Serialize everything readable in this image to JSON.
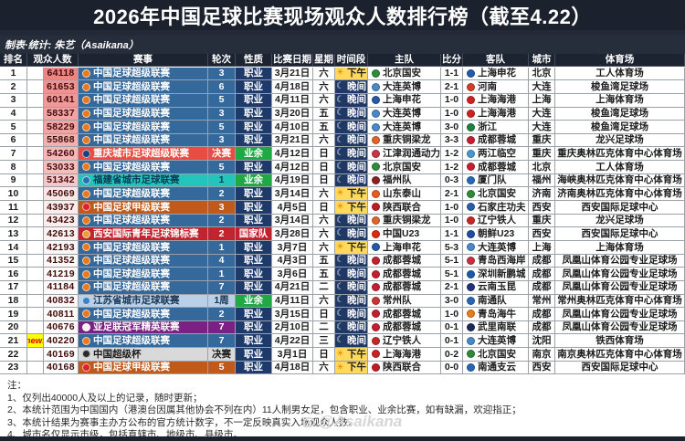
{
  "title": "2026年中国足球比赛现场观众人数排行榜（截至4.22）",
  "credit": "制表·统计: 朱艺（Asaikana）",
  "watermark": "@Asaikana",
  "table": {
    "columns": [
      {
        "key": "rank",
        "label": "排名"
      },
      {
        "key": "attendance",
        "label": "观众人数",
        "span": 2
      },
      {
        "key": "league",
        "label": "赛事"
      },
      {
        "key": "round",
        "label": "轮次"
      },
      {
        "key": "nature",
        "label": "性质"
      },
      {
        "key": "date",
        "label": "比赛日期"
      },
      {
        "key": "weekday",
        "label": "星期"
      },
      {
        "key": "time",
        "label": "时间段"
      },
      {
        "key": "home",
        "label": "主队"
      },
      {
        "key": "score",
        "label": "比分"
      },
      {
        "key": "away",
        "label": "客队"
      },
      {
        "key": "city",
        "label": "城市"
      },
      {
        "key": "stadium",
        "label": "体育场"
      }
    ],
    "attendance_heat": {
      "min": 40000,
      "max": 64200,
      "high_color": "#ef8585",
      "low_color": "#ffffff"
    },
    "rows": [
      {
        "rank": "1",
        "flag": "",
        "attendance": "64118",
        "league": "中国足球超级联赛",
        "round": "3",
        "nature": "职业",
        "date": "3月21日",
        "week": "六",
        "time": "下午",
        "home": {
          "name": "北京国安",
          "color": "#2e8b3a"
        },
        "score": "1-1",
        "away": {
          "name": "上海申花",
          "color": "#2458a8"
        },
        "city": "北京",
        "stadium": "工人体育场"
      },
      {
        "rank": "2",
        "flag": "",
        "attendance": "61653",
        "league": "中国足球超级联赛",
        "round": "6",
        "nature": "职业",
        "date": "4月18日",
        "week": "六",
        "time": "晚间",
        "home": {
          "name": "大连英博",
          "color": "#4a88c8"
        },
        "score": "2-1",
        "away": {
          "name": "河南",
          "color": "#d04028"
        },
        "city": "大连",
        "stadium": "梭鱼湾足球场"
      },
      {
        "rank": "3",
        "flag": "",
        "attendance": "60141",
        "league": "中国足球超级联赛",
        "round": "5",
        "nature": "职业",
        "date": "4月11日",
        "week": "六",
        "time": "晚间",
        "home": {
          "name": "上海申花",
          "color": "#2458a8"
        },
        "score": "1-0",
        "away": {
          "name": "上海海港",
          "color": "#cc2222"
        },
        "city": "上海",
        "stadium": "上海体育场"
      },
      {
        "rank": "4",
        "flag": "",
        "attendance": "58337",
        "league": "中国足球超级联赛",
        "round": "3",
        "nature": "职业",
        "date": "3月20日",
        "week": "五",
        "time": "晚间",
        "home": {
          "name": "大连英博",
          "color": "#4a88c8"
        },
        "score": "1-0",
        "away": {
          "name": "上海海港",
          "color": "#cc2222"
        },
        "city": "大连",
        "stadium": "梭鱼湾足球场"
      },
      {
        "rank": "5",
        "flag": "",
        "attendance": "58229",
        "league": "中国足球超级联赛",
        "round": "5",
        "nature": "职业",
        "date": "4月10日",
        "week": "五",
        "time": "晚间",
        "home": {
          "name": "大连英博",
          "color": "#4a88c8"
        },
        "score": "3-0",
        "away": {
          "name": "浙江",
          "color": "#1f8040"
        },
        "city": "大连",
        "stadium": "梭鱼湾足球场"
      },
      {
        "rank": "6",
        "flag": "",
        "attendance": "55868",
        "league": "中国足球超级联赛",
        "round": "3",
        "nature": "职业",
        "date": "3月21日",
        "week": "六",
        "time": "晚间",
        "home": {
          "name": "重庆铜梁龙",
          "color": "#e06428"
        },
        "score": "3-3",
        "away": {
          "name": "成都蓉城",
          "color": "#c41e30"
        },
        "city": "重庆",
        "stadium": "龙兴足球场"
      },
      {
        "rank": "7",
        "flag": "",
        "attendance": "54260",
        "league": "重庆城市足球超级联赛",
        "round": "决赛",
        "nature": "业余",
        "date": "4月12日",
        "week": "日",
        "time": "晚间",
        "home": {
          "name": "江津润通动力",
          "color": "#cc3344"
        },
        "score": "1-2",
        "away": {
          "name": "两江临空",
          "color": "#4898d0"
        },
        "city": "重庆",
        "stadium": "重庆奥林匹克体育中心体育场"
      },
      {
        "rank": "8",
        "flag": "",
        "attendance": "53033",
        "league": "中国足球超级联赛",
        "round": "5",
        "nature": "职业",
        "date": "4月12日",
        "week": "日",
        "time": "晚间",
        "home": {
          "name": "北京国安",
          "color": "#2e8b3a"
        },
        "score": "1-2",
        "away": {
          "name": "成都蓉城",
          "color": "#c41e30"
        },
        "city": "北京",
        "stadium": "工人体育场"
      },
      {
        "rank": "9",
        "flag": "",
        "attendance": "51342",
        "league": "福建省城市足球联赛",
        "round": "1",
        "nature": "业余",
        "date": "4月19日",
        "week": "日",
        "time": "晚间",
        "home": {
          "name": "福州队",
          "color": "#8a2424"
        },
        "score": "0-3",
        "away": {
          "name": "厦门队",
          "color": "#2668b8"
        },
        "city": "福州",
        "stadium": "海峡奥林匹克体育中心体育场"
      },
      {
        "rank": "10",
        "flag": "",
        "attendance": "45069",
        "league": "中国足球超级联赛",
        "round": "2",
        "nature": "职业",
        "date": "3月14日",
        "week": "六",
        "time": "下午",
        "home": {
          "name": "山东泰山",
          "color": "#e85c20"
        },
        "score": "2-1",
        "away": {
          "name": "北京国安",
          "color": "#2e8b3a"
        },
        "city": "济南",
        "stadium": "济南奥林匹克体育中心体育场"
      },
      {
        "rank": "11",
        "flag": "",
        "attendance": "43937",
        "league": "中国足球甲级联赛",
        "round": "3",
        "nature": "职业",
        "date": "4月5日",
        "week": "日",
        "time": "下午",
        "home": {
          "name": "陕西联合",
          "color": "#c01c24"
        },
        "score": "1-0",
        "away": {
          "name": "石家庄功夫",
          "color": "#2a5ca8"
        },
        "city": "西安",
        "stadium": "西安国际足球中心"
      },
      {
        "rank": "12",
        "flag": "",
        "attendance": "43423",
        "league": "中国足球超级联赛",
        "round": "2",
        "nature": "职业",
        "date": "3月14日",
        "week": "六",
        "time": "晚间",
        "home": {
          "name": "重庆铜梁龙",
          "color": "#e06428"
        },
        "score": "1-0",
        "away": {
          "name": "辽宁铁人",
          "color": "#c22828"
        },
        "city": "重庆",
        "stadium": "龙兴足球场"
      },
      {
        "rank": "13",
        "flag": "",
        "attendance": "42613",
        "league": "西安国际青年足球锦标赛",
        "round": "2",
        "nature": "国家队",
        "date": "3月28日",
        "week": "六",
        "time": "晚间",
        "home": {
          "name": "中国U23",
          "color": "#de2910"
        },
        "score": "1-1",
        "away": {
          "name": "朝鲜U23",
          "color": "#1c4fa0"
        },
        "city": "西安",
        "stadium": "西安国际足球中心"
      },
      {
        "rank": "14",
        "flag": "",
        "attendance": "42193",
        "league": "中国足球超级联赛",
        "round": "1",
        "nature": "职业",
        "date": "3月7日",
        "week": "六",
        "time": "下午",
        "home": {
          "name": "上海申花",
          "color": "#2458a8"
        },
        "score": "5-3",
        "away": {
          "name": "大连英博",
          "color": "#4a88c8"
        },
        "city": "上海",
        "stadium": "上海体育场"
      },
      {
        "rank": "15",
        "flag": "",
        "attendance": "41352",
        "league": "中国足球超级联赛",
        "round": "4",
        "nature": "职业",
        "date": "4月3日",
        "week": "五",
        "time": "晚间",
        "home": {
          "name": "成都蓉城",
          "color": "#c41e30"
        },
        "score": "5-1",
        "away": {
          "name": "青岛西海岸",
          "color": "#c83040"
        },
        "city": "成都",
        "stadium": "凤凰山体育公园专业足球场"
      },
      {
        "rank": "16",
        "flag": "",
        "attendance": "41219",
        "league": "中国足球超级联赛",
        "round": "1",
        "nature": "职业",
        "date": "3月6日",
        "week": "五",
        "time": "晚间",
        "home": {
          "name": "成都蓉城",
          "color": "#c41e30"
        },
        "score": "5-1",
        "away": {
          "name": "深圳新鹏城",
          "color": "#1c58ac"
        },
        "city": "成都",
        "stadium": "凤凰山体育公园专业足球场"
      },
      {
        "rank": "17",
        "flag": "",
        "attendance": "41184",
        "league": "中国足球超级联赛",
        "round": "7",
        "nature": "职业",
        "date": "4月21日",
        "week": "二",
        "time": "晚间",
        "home": {
          "name": "成都蓉城",
          "color": "#c41e30"
        },
        "score": "2-1",
        "away": {
          "name": "云南玉昆",
          "color": "#243278"
        },
        "city": "成都",
        "stadium": "凤凰山体育公园专业足球场"
      },
      {
        "rank": "18",
        "flag": "",
        "attendance": "40832",
        "league": "江苏省城市足球联赛",
        "round": "1周",
        "nature": "业余",
        "date": "4月11日",
        "week": "六",
        "time": "晚间",
        "home": {
          "name": "常州队",
          "color": "#cc3434"
        },
        "score": "3-0",
        "away": {
          "name": "南通队",
          "color": "#2866b4"
        },
        "city": "常州",
        "stadium": "常州奥林匹克体育中心体育场"
      },
      {
        "rank": "19",
        "flag": "",
        "attendance": "40811",
        "league": "中国足球超级联赛",
        "round": "2",
        "nature": "职业",
        "date": "3月15日",
        "week": "日",
        "time": "晚间",
        "home": {
          "name": "成都蓉城",
          "color": "#c41e30"
        },
        "score": "1-0",
        "away": {
          "name": "青岛海牛",
          "color": "#e87c1c"
        },
        "city": "成都",
        "stadium": "凤凰山体育公园专业足球场"
      },
      {
        "rank": "20",
        "flag": "",
        "attendance": "40676",
        "league": "亚足联冠军精英联赛",
        "round": "7",
        "nature": "职业",
        "date": "2月10日",
        "week": "二",
        "time": "晚间",
        "home": {
          "name": "成都蓉城",
          "color": "#c41e30"
        },
        "score": "0-1",
        "away": {
          "name": "武里南联",
          "color": "#1c2a58"
        },
        "city": "成都",
        "stadium": "凤凰山体育公园专业足球场"
      },
      {
        "rank": "21",
        "flag": "new!",
        "attendance": "40220",
        "league": "中国足球超级联赛",
        "round": "7",
        "nature": "职业",
        "date": "4月22日",
        "week": "三",
        "time": "晚间",
        "home": {
          "name": "辽宁铁人",
          "color": "#c22828"
        },
        "score": "0-1",
        "away": {
          "name": "大连英博",
          "color": "#4a88c8"
        },
        "city": "沈阳",
        "stadium": "铁西体育场"
      },
      {
        "rank": "22",
        "flag": "",
        "attendance": "40169",
        "league": "中国超级杯",
        "round": "决赛",
        "nature": "职业",
        "date": "3月1日",
        "week": "日",
        "time": "下午",
        "home": {
          "name": "上海海港",
          "color": "#cc2222"
        },
        "score": "0-2",
        "away": {
          "name": "北京国安",
          "color": "#2e8b3a"
        },
        "city": "南京",
        "stadium": "南京奥林匹克体育中心体育场"
      },
      {
        "rank": "23",
        "flag": "",
        "attendance": "40168",
        "league": "中国足球甲级联赛",
        "round": "5",
        "nature": "职业",
        "date": "4月18日",
        "week": "六",
        "time": "下午",
        "home": {
          "name": "陕西联合",
          "color": "#c01c24"
        },
        "score": "0-0",
        "away": {
          "name": "南通支云",
          "color": "#2c64b4"
        },
        "city": "西安",
        "stadium": "西安国际足球中心"
      }
    ]
  },
  "league_styles": {
    "中国足球超级联赛": {
      "bg": "#35689b",
      "fg": "#ffffff",
      "logo": "#e8791e"
    },
    "重庆城市足球超级联赛": {
      "bg": "#e84c44",
      "fg": "#ffffff",
      "logo": "#1d3f7a"
    },
    "福建省城市足球联赛": {
      "bg": "#22c4bc",
      "fg": "#093c55",
      "logo": "#2b6fb4"
    },
    "中国足球甲级联赛": {
      "bg": "#c05a1a",
      "fg": "#ffffff",
      "logo": "#d8242a"
    },
    "西安国际青年足球锦标赛": {
      "bg": "#c3232e",
      "fg": "#ffffff",
      "logo": "#e2a13c"
    },
    "江苏省城市足球联赛": {
      "bg": "#b9d0e8",
      "fg": "#173553",
      "logo": "#3b82c4"
    },
    "亚足联冠军精英联赛": {
      "bg": "#7c2184",
      "fg": "#ffffff",
      "logo": "#f3f3f3"
    },
    "中国超级杯": {
      "bg": "#d9d9d9",
      "fg": "#1a1a1a",
      "logo": "#2a2a2a"
    }
  },
  "nature_styles": {
    "职业": {
      "bg": "#1e3a6b",
      "fg": "#ffffff"
    },
    "业余": {
      "bg": "#1fa844",
      "fg": "#ffffff"
    },
    "国家队": {
      "bg": "#c11f2e",
      "fg": "#ffffff"
    }
  },
  "time_styles": {
    "下午": {
      "bg": "#ffd95c",
      "fg": "#222222",
      "icon": "☀",
      "icon_color": "#ee8a00"
    },
    "晚间": {
      "bg": "#203864",
      "fg": "#ffffff",
      "icon": "☾",
      "icon_color": "#dfe6f5"
    }
  },
  "notes": [
    "注：",
    "1、仅列出40000人及以上的记录，随时更新；",
    "2、本统计范围为中国国内（港澳台因属其他协会不列在内）11人制男女足，包含职业、业余比赛，如有缺漏，欢迎指正；",
    "3、本统计结果为赛事主办方公布的官方统计数字，不一定反映真实入场观众人数。",
    "4、城市名仅显示市级，包括直辖市、地级市、县级市。"
  ]
}
